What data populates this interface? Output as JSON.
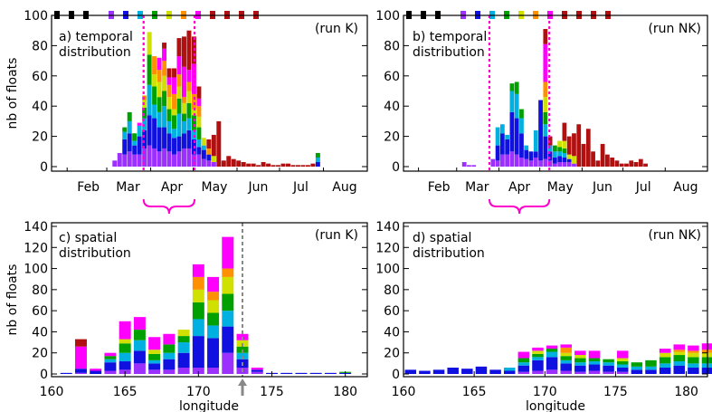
{
  "colors": [
    "#000000",
    "#9b30ff",
    "#1010e0",
    "#00b0e0",
    "#00a000",
    "#d0e000",
    "#ff9000",
    "#ff00ff",
    "#b01010"
  ],
  "shared": {
    "ylabel": "nb of floats",
    "xlabel_lon": "longitude",
    "months": [
      "Feb",
      "Mar",
      "Apr",
      "May",
      "Jun",
      "Jul",
      "Aug"
    ]
  },
  "chart_data": [
    {
      "id": "a",
      "type": "bar",
      "stacked": true,
      "label": "a) temporal\ndistribution",
      "run": "(run K)",
      "xaxis": "time",
      "ylim": [
        0,
        100
      ],
      "yticks": [
        0,
        20,
        40,
        60,
        80,
        100
      ],
      "dotted_lines_day": [
        85,
        121
      ],
      "bracket_days": [
        85,
        121
      ],
      "start_day": 63,
      "stacks": [
        [
          4,
          0,
          0,
          0,
          0,
          0,
          0,
          0
        ],
        [
          9,
          0,
          0,
          0,
          0,
          0,
          0,
          0
        ],
        [
          8,
          10,
          5,
          3,
          0,
          0,
          0,
          0
        ],
        [
          10,
          12,
          8,
          6,
          0,
          0,
          0,
          0
        ],
        [
          8,
          6,
          3,
          5,
          0,
          0,
          0,
          0
        ],
        [
          8,
          12,
          7,
          0,
          0,
          0,
          2,
          0
        ],
        [
          12,
          12,
          8,
          7,
          5,
          3,
          0,
          0
        ],
        [
          14,
          20,
          20,
          20,
          15,
          0,
          0,
          0
        ],
        [
          12,
          20,
          9,
          12,
          8,
          12,
          0,
          0
        ],
        [
          10,
          16,
          10,
          10,
          10,
          8,
          8,
          0
        ],
        [
          12,
          14,
          14,
          10,
          10,
          10,
          8,
          4
        ],
        [
          10,
          12,
          8,
          8,
          8,
          8,
          5,
          6
        ],
        [
          8,
          11,
          6,
          9,
          4,
          10,
          11,
          6
        ],
        [
          10,
          10,
          15,
          10,
          8,
          8,
          12,
          12
        ],
        [
          12,
          10,
          8,
          5,
          7,
          4,
          20,
          20
        ],
        [
          12,
          12,
          8,
          10,
          8,
          6,
          8,
          26
        ],
        [
          8,
          10,
          6,
          10,
          4,
          10,
          20,
          18
        ],
        [
          8,
          5,
          5,
          8,
          7,
          7,
          5,
          8
        ],
        [
          5,
          6,
          3,
          0,
          5,
          0,
          0,
          0
        ],
        [
          4,
          4,
          0,
          0,
          0,
          4,
          0,
          6
        ],
        [
          3,
          0,
          0,
          0,
          4,
          0,
          0,
          14
        ],
        [
          0,
          0,
          0,
          0,
          0,
          0,
          0,
          30
        ],
        [
          0,
          0,
          0,
          0,
          0,
          0,
          0,
          4
        ],
        [
          0,
          0,
          0,
          0,
          0,
          0,
          0,
          7
        ],
        [
          0,
          0,
          0,
          0,
          0,
          0,
          0,
          5
        ],
        [
          0,
          0,
          0,
          0,
          0,
          0,
          0,
          4
        ],
        [
          0,
          0,
          0,
          0,
          0,
          0,
          0,
          3
        ],
        [
          0,
          0,
          0,
          0,
          0,
          0,
          0,
          2
        ],
        [
          0,
          0,
          0,
          0,
          0,
          0,
          0,
          2
        ],
        [
          0,
          0,
          0,
          0,
          0,
          0,
          0,
          1
        ],
        [
          0,
          0,
          0,
          0,
          0,
          0,
          0,
          3
        ],
        [
          0,
          0,
          0,
          0,
          0,
          0,
          0,
          2
        ],
        [
          0,
          0,
          0,
          0,
          0,
          0,
          0,
          1
        ],
        [
          0,
          0,
          0,
          0,
          0,
          0,
          0,
          1
        ],
        [
          0,
          0,
          0,
          0,
          0,
          0,
          0,
          2
        ],
        [
          0,
          0,
          0,
          0,
          0,
          0,
          0,
          2
        ],
        [
          0,
          0,
          0,
          0,
          0,
          0,
          0,
          1
        ],
        [
          0,
          0,
          0,
          0,
          0,
          0,
          0,
          1
        ],
        [
          0,
          0,
          0,
          0,
          0,
          0,
          0,
          1
        ],
        [
          0,
          0,
          0,
          0,
          0,
          0,
          0,
          1
        ],
        [
          0,
          0,
          0,
          0,
          0,
          0,
          0,
          2
        ],
        [
          0,
          3,
          3,
          3,
          0,
          0,
          0,
          0
        ]
      ]
    },
    {
      "id": "b",
      "type": "bar",
      "stacked": true,
      "label": "b) temporal\ndistribution",
      "run": "(run NK)",
      "xaxis": "time",
      "ylim": [
        0,
        100
      ],
      "yticks": [
        0,
        20,
        40,
        60,
        80,
        100
      ],
      "dotted_lines_day": [
        83,
        127
      ],
      "bracket_days": [
        83,
        127
      ],
      "start_day": 63,
      "stacks": [
        [
          3,
          0,
          0,
          0,
          0,
          0,
          0,
          0
        ],
        [
          1,
          0,
          0,
          0,
          0,
          0,
          0,
          0
        ],
        [
          1,
          0,
          0,
          0,
          0,
          0,
          0,
          0
        ],
        [
          0,
          0,
          0,
          0,
          0,
          0,
          0,
          0
        ],
        [
          0,
          0,
          0,
          0,
          0,
          0,
          0,
          0
        ],
        [
          0,
          0,
          0,
          0,
          0,
          0,
          0,
          0
        ],
        [
          5,
          0,
          0,
          0,
          0,
          0,
          0,
          0
        ],
        [
          4,
          10,
          12,
          0,
          0,
          0,
          0,
          0
        ],
        [
          8,
          14,
          6,
          0,
          0,
          0,
          0,
          0
        ],
        [
          8,
          10,
          3,
          0,
          0,
          0,
          0,
          0
        ],
        [
          10,
          26,
          14,
          5,
          0,
          0,
          0,
          0
        ],
        [
          8,
          24,
          16,
          8,
          0,
          0,
          0,
          0
        ],
        [
          6,
          16,
          10,
          6,
          0,
          0,
          0,
          0
        ],
        [
          5,
          6,
          3,
          0,
          0,
          0,
          0,
          0
        ],
        [
          4,
          6,
          0,
          0,
          0,
          0,
          0,
          0
        ],
        [
          6,
          4,
          14,
          0,
          0,
          0,
          0,
          0
        ],
        [
          4,
          40,
          0,
          0,
          0,
          0,
          0,
          0
        ],
        [
          5,
          15,
          8,
          8,
          10,
          10,
          25,
          10
        ],
        [
          4,
          6,
          4,
          0,
          0,
          0,
          0,
          6
        ],
        [
          2,
          4,
          4,
          4,
          0,
          0,
          0,
          0
        ],
        [
          3,
          4,
          3,
          3,
          4,
          0,
          0,
          0
        ],
        [
          3,
          3,
          3,
          3,
          5,
          0,
          0,
          12
        ],
        [
          3,
          2,
          0,
          0,
          3,
          0,
          0,
          12
        ],
        [
          2,
          0,
          0,
          0,
          5,
          0,
          0,
          15
        ],
        [
          0,
          0,
          0,
          0,
          0,
          0,
          0,
          28
        ],
        [
          0,
          0,
          0,
          0,
          0,
          0,
          0,
          15
        ],
        [
          0,
          0,
          0,
          0,
          0,
          0,
          0,
          25
        ],
        [
          0,
          0,
          0,
          0,
          0,
          0,
          0,
          10
        ],
        [
          0,
          0,
          0,
          0,
          0,
          0,
          0,
          4
        ],
        [
          0,
          0,
          0,
          0,
          0,
          0,
          0,
          15
        ],
        [
          0,
          0,
          0,
          0,
          0,
          0,
          0,
          8
        ],
        [
          0,
          0,
          0,
          0,
          0,
          0,
          0,
          6
        ],
        [
          0,
          0,
          0,
          0,
          0,
          0,
          0,
          4
        ],
        [
          0,
          0,
          0,
          0,
          0,
          0,
          0,
          2
        ],
        [
          0,
          0,
          0,
          0,
          0,
          0,
          0,
          2
        ],
        [
          0,
          0,
          0,
          0,
          0,
          0,
          0,
          4
        ],
        [
          0,
          0,
          0,
          0,
          0,
          0,
          0,
          3
        ],
        [
          0,
          0,
          0,
          0,
          0,
          0,
          0,
          5
        ],
        [
          0,
          0,
          0,
          0,
          0,
          0,
          0,
          2
        ],
        [
          0,
          0,
          0,
          0,
          0,
          0,
          0,
          0
        ],
        [
          0,
          0,
          0,
          0,
          0,
          0,
          0,
          0
        ],
        [
          0,
          0,
          0,
          0,
          0,
          0,
          0,
          0
        ]
      ]
    },
    {
      "id": "c",
      "type": "bar",
      "stacked": true,
      "label": "c) spatial\ndistribution",
      "run": "(run K)",
      "xaxis": "longitude",
      "xlim": [
        160,
        181.5
      ],
      "xticks": [
        160,
        165,
        170,
        175,
        180
      ],
      "ylim": [
        0,
        140
      ],
      "yticks": [
        0,
        20,
        40,
        60,
        80,
        100,
        120,
        140
      ],
      "dashed_lon": 173,
      "arrow_lon": 173,
      "bins": [
        161,
        162,
        163,
        164,
        165,
        166,
        167,
        168,
        169,
        170,
        171,
        172,
        173,
        174,
        175,
        176,
        177,
        178,
        179,
        180,
        181
      ],
      "stacks": [
        [
          0,
          1,
          0,
          0,
          0,
          0,
          0,
          0
        ],
        [
          1,
          4,
          0,
          0,
          0,
          0,
          21,
          7
        ],
        [
          0,
          3,
          0,
          0,
          0,
          0,
          2,
          0
        ],
        [
          3,
          8,
          3,
          3,
          0,
          0,
          3,
          0
        ],
        [
          4,
          8,
          8,
          9,
          4,
          0,
          17,
          0
        ],
        [
          10,
          12,
          10,
          10,
          0,
          0,
          12,
          0
        ],
        [
          4,
          6,
          3,
          6,
          4,
          0,
          12,
          0
        ],
        [
          4,
          10,
          6,
          8,
          0,
          0,
          10,
          0
        ],
        [
          6,
          14,
          10,
          6,
          6,
          0,
          0,
          0
        ],
        [
          6,
          30,
          16,
          16,
          12,
          12,
          12,
          0
        ],
        [
          6,
          28,
          12,
          12,
          12,
          8,
          14,
          0
        ],
        [
          20,
          25,
          15,
          16,
          16,
          8,
          30,
          0
        ],
        [
          6,
          8,
          6,
          6,
          6,
          0,
          6,
          0
        ],
        [
          2,
          2,
          0,
          0,
          0,
          0,
          2,
          0
        ],
        [
          0,
          1,
          0,
          0,
          0,
          0,
          0,
          0
        ],
        [
          0,
          1,
          0,
          0,
          0,
          0,
          0,
          0
        ],
        [
          0,
          1,
          0,
          0,
          0,
          0,
          0,
          0
        ],
        [
          0,
          1,
          0,
          0,
          0,
          0,
          0,
          0
        ],
        [
          0,
          1,
          0,
          0,
          0,
          0,
          0,
          0
        ],
        [
          0,
          1,
          0,
          1,
          0,
          0,
          0,
          0
        ],
        [
          0,
          0,
          0,
          0,
          0,
          0,
          0,
          0
        ]
      ]
    },
    {
      "id": "d",
      "type": "bar",
      "stacked": true,
      "label": "d) spatial\ndistribution",
      "run": "(run NK)",
      "xaxis": "longitude",
      "xlim": [
        160,
        181.5
      ],
      "xticks": [
        160,
        165,
        170,
        175,
        180
      ],
      "ylim": [
        0,
        140
      ],
      "yticks": [
        0,
        20,
        40,
        60,
        80,
        100,
        120,
        140
      ],
      "bins": [
        160.5,
        161.5,
        162.5,
        163.5,
        164.5,
        165.5,
        166.5,
        167.5,
        168.5,
        169.5,
        170.5,
        171.5,
        172.5,
        173.5,
        174.5,
        175.5,
        176.5,
        177.5,
        178.5,
        179.5,
        180.5,
        181.5
      ],
      "stacks": [
        [
          0,
          4,
          0,
          0,
          0,
          0,
          0,
          0
        ],
        [
          0,
          3,
          0,
          0,
          0,
          0,
          0,
          0
        ],
        [
          0,
          4,
          0,
          0,
          0,
          0,
          0,
          0
        ],
        [
          0,
          6,
          0,
          0,
          0,
          0,
          0,
          0
        ],
        [
          0,
          5,
          0,
          0,
          0,
          0,
          0,
          0
        ],
        [
          0,
          7,
          0,
          0,
          0,
          0,
          0,
          0
        ],
        [
          0,
          4,
          0,
          0,
          0,
          0,
          0,
          0
        ],
        [
          0,
          3,
          3,
          0,
          0,
          0,
          0,
          0
        ],
        [
          2,
          6,
          3,
          4,
          0,
          0,
          6,
          0
        ],
        [
          3,
          10,
          3,
          3,
          3,
          0,
          3,
          0
        ],
        [
          4,
          12,
          5,
          3,
          0,
          0,
          3,
          0
        ],
        [
          3,
          7,
          3,
          4,
          3,
          5,
          3,
          0
        ],
        [
          2,
          6,
          3,
          4,
          3,
          0,
          4,
          0
        ],
        [
          3,
          6,
          3,
          3,
          0,
          0,
          7,
          0
        ],
        [
          2,
          6,
          3,
          3,
          0,
          0,
          0,
          0
        ],
        [
          2,
          4,
          3,
          3,
          3,
          0,
          7,
          0
        ],
        [
          0,
          4,
          3,
          4,
          0,
          0,
          0,
          0
        ],
        [
          0,
          4,
          3,
          6,
          0,
          0,
          0,
          0
        ],
        [
          0,
          6,
          4,
          6,
          4,
          0,
          4,
          0
        ],
        [
          0,
          8,
          4,
          6,
          3,
          2,
          5,
          0
        ],
        [
          0,
          6,
          4,
          6,
          4,
          2,
          5,
          0
        ],
        [
          0,
          6,
          4,
          6,
          4,
          3,
          6,
          0
        ]
      ]
    }
  ]
}
